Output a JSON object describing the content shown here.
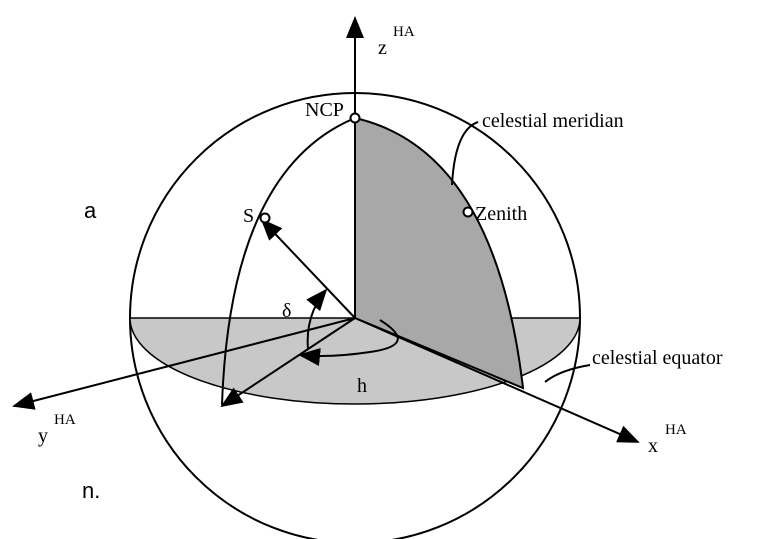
{
  "labels": {
    "z": "z",
    "z_sup": "HA",
    "ncp": "NCP",
    "meridian": "celestial meridian",
    "s": "S",
    "zenith": "Zenith",
    "delta": "δ",
    "h": "h",
    "equator": "celestial equator",
    "y": "y",
    "y_sup": "HA",
    "x": "x",
    "x_sup": "HA"
  },
  "fragments": [
    "a",
    "n."
  ]
}
